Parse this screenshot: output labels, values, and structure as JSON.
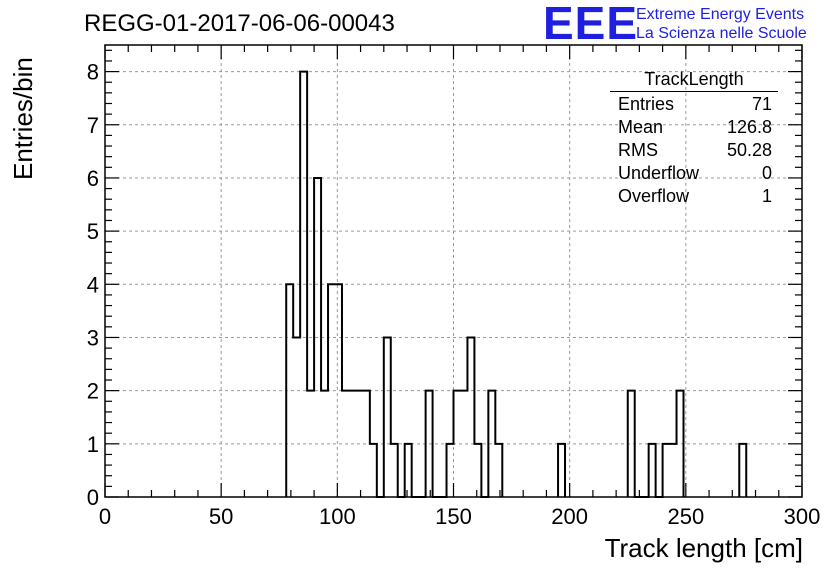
{
  "title": "REGG-01-2017-06-06-00043",
  "logo": {
    "text": "EEE",
    "line1": "Extreme Energy Events",
    "line2": "La Scienza nelle Scuole",
    "color": "#1f1fe0"
  },
  "stats_box": {
    "title": "TrackLength",
    "rows": [
      {
        "label": "Entries",
        "value": "71"
      },
      {
        "label": "Mean",
        "value": "126.8"
      },
      {
        "label": "RMS",
        "value": "50.28"
      },
      {
        "label": "Underflow",
        "value": "0"
      },
      {
        "label": "Overflow",
        "value": "1"
      }
    ]
  },
  "chart_data": {
    "type": "bar",
    "histogram": true,
    "xlabel": "Track length [cm]",
    "ylabel": "Entries/bin",
    "xlim": [
      0,
      300
    ],
    "ylim": [
      0,
      8.5
    ],
    "x_ticks": [
      0,
      50,
      100,
      150,
      200,
      250,
      300
    ],
    "y_ticks": [
      0,
      1,
      2,
      3,
      4,
      5,
      6,
      7,
      8
    ],
    "grid": true,
    "bin_width": 3,
    "bins": [
      {
        "x": 78,
        "y": 4
      },
      {
        "x": 81,
        "y": 3
      },
      {
        "x": 84,
        "y": 8
      },
      {
        "x": 87,
        "y": 2
      },
      {
        "x": 90,
        "y": 6
      },
      {
        "x": 93,
        "y": 2
      },
      {
        "x": 96,
        "y": 4
      },
      {
        "x": 99,
        "y": 4
      },
      {
        "x": 102,
        "y": 2
      },
      {
        "x": 105,
        "y": 2
      },
      {
        "x": 108,
        "y": 2
      },
      {
        "x": 111,
        "y": 2
      },
      {
        "x": 114,
        "y": 1
      },
      {
        "x": 117,
        "y": 0
      },
      {
        "x": 120,
        "y": 3
      },
      {
        "x": 123,
        "y": 1
      },
      {
        "x": 126,
        "y": 0
      },
      {
        "x": 129,
        "y": 1
      },
      {
        "x": 132,
        "y": 0
      },
      {
        "x": 135,
        "y": 0
      },
      {
        "x": 138,
        "y": 2
      },
      {
        "x": 141,
        "y": 0
      },
      {
        "x": 144,
        "y": 0
      },
      {
        "x": 147,
        "y": 1
      },
      {
        "x": 150,
        "y": 2
      },
      {
        "x": 153,
        "y": 2
      },
      {
        "x": 156,
        "y": 3
      },
      {
        "x": 159,
        "y": 1
      },
      {
        "x": 162,
        "y": 0
      },
      {
        "x": 165,
        "y": 2
      },
      {
        "x": 168,
        "y": 1
      },
      {
        "x": 195,
        "y": 1
      },
      {
        "x": 225,
        "y": 2
      },
      {
        "x": 228,
        "y": 0
      },
      {
        "x": 231,
        "y": 0
      },
      {
        "x": 234,
        "y": 1
      },
      {
        "x": 237,
        "y": 0
      },
      {
        "x": 240,
        "y": 1
      },
      {
        "x": 243,
        "y": 1
      },
      {
        "x": 246,
        "y": 2
      },
      {
        "x": 273,
        "y": 1
      }
    ]
  }
}
